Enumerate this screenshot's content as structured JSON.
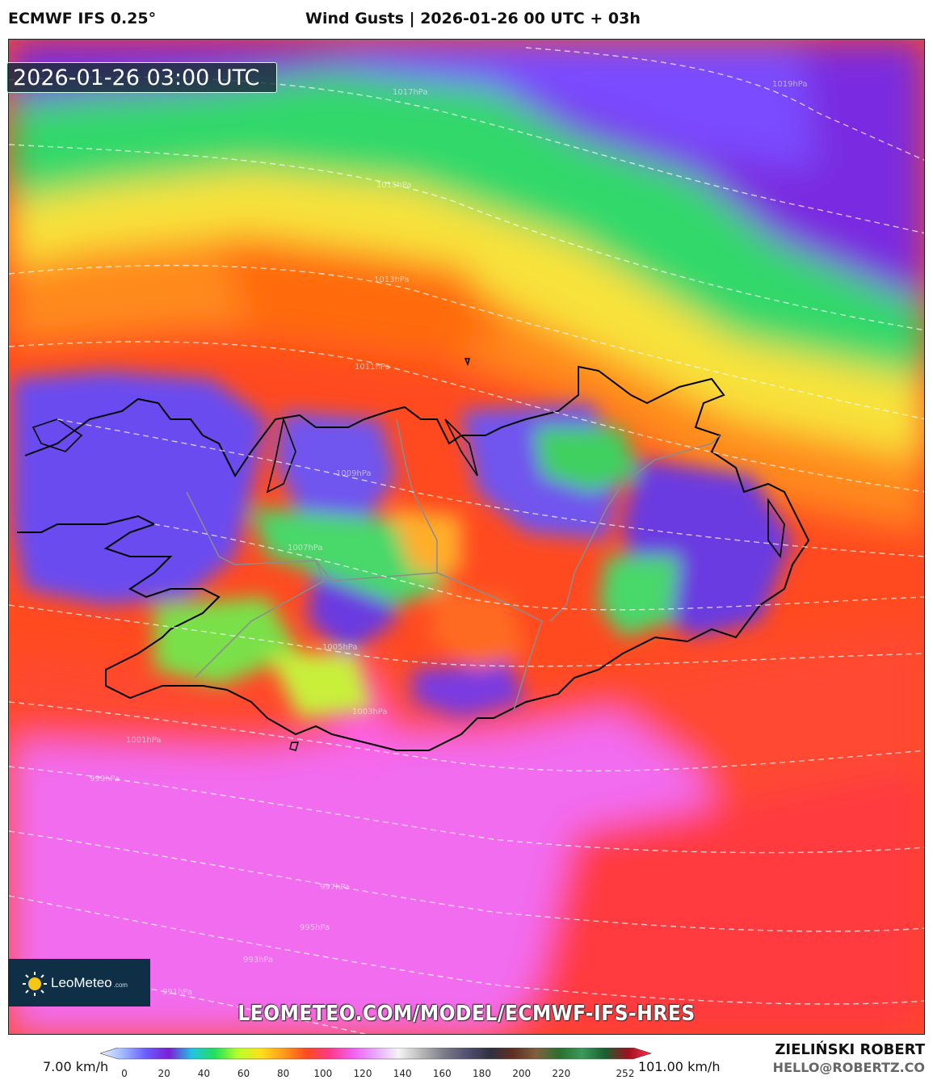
{
  "header": {
    "model": "ECMWF IFS 0.25°",
    "title": "Wind Gusts | 2026-01-26 00 UTC + 03h"
  },
  "map": {
    "valid_time": "2026-01-26 03:00 UTC",
    "isobar_labels": [
      "1019hPa",
      "1017hPa",
      "1015hPa",
      "1013hPa",
      "1011hPa",
      "1009hPa",
      "1007hPa",
      "1005hPa",
      "1003hPa",
      "1001hPa",
      "999hPa",
      "997hPa",
      "995hPa",
      "993hPa",
      "991hPa"
    ]
  },
  "logo": {
    "name": "LeoMeteo",
    "suffix": ".com"
  },
  "watermark": "LEOMETEO.COM/MODEL/ECMWF-IFS-HRES",
  "colorbar": {
    "min_label": "7.00 km/h",
    "max_label": "101.00 km/h",
    "ticks": [
      "0",
      "20",
      "40",
      "60",
      "80",
      "100",
      "120",
      "140",
      "160",
      "180",
      "200",
      "220",
      "252"
    ],
    "colors": [
      "#e8f0ff",
      "#9fb8ff",
      "#6a5cff",
      "#7b1fd6",
      "#22c4e0",
      "#22e05a",
      "#b8ff2a",
      "#ffe01a",
      "#ff9a1a",
      "#ff4a20",
      "#ff3a8a",
      "#f060f0",
      "#e8a8ff",
      "#f4f4f4",
      "#b8b8b8",
      "#7a7a8a",
      "#505070",
      "#303040",
      "#603020",
      "#806040",
      "#2a7030",
      "#3a9a5a",
      "#1a6030",
      "#a01020",
      "#ff3050"
    ]
  },
  "credits": {
    "author": "ZIELIŃSKI ROBERT",
    "email": "HELLO@ROBERTZ.CO"
  }
}
